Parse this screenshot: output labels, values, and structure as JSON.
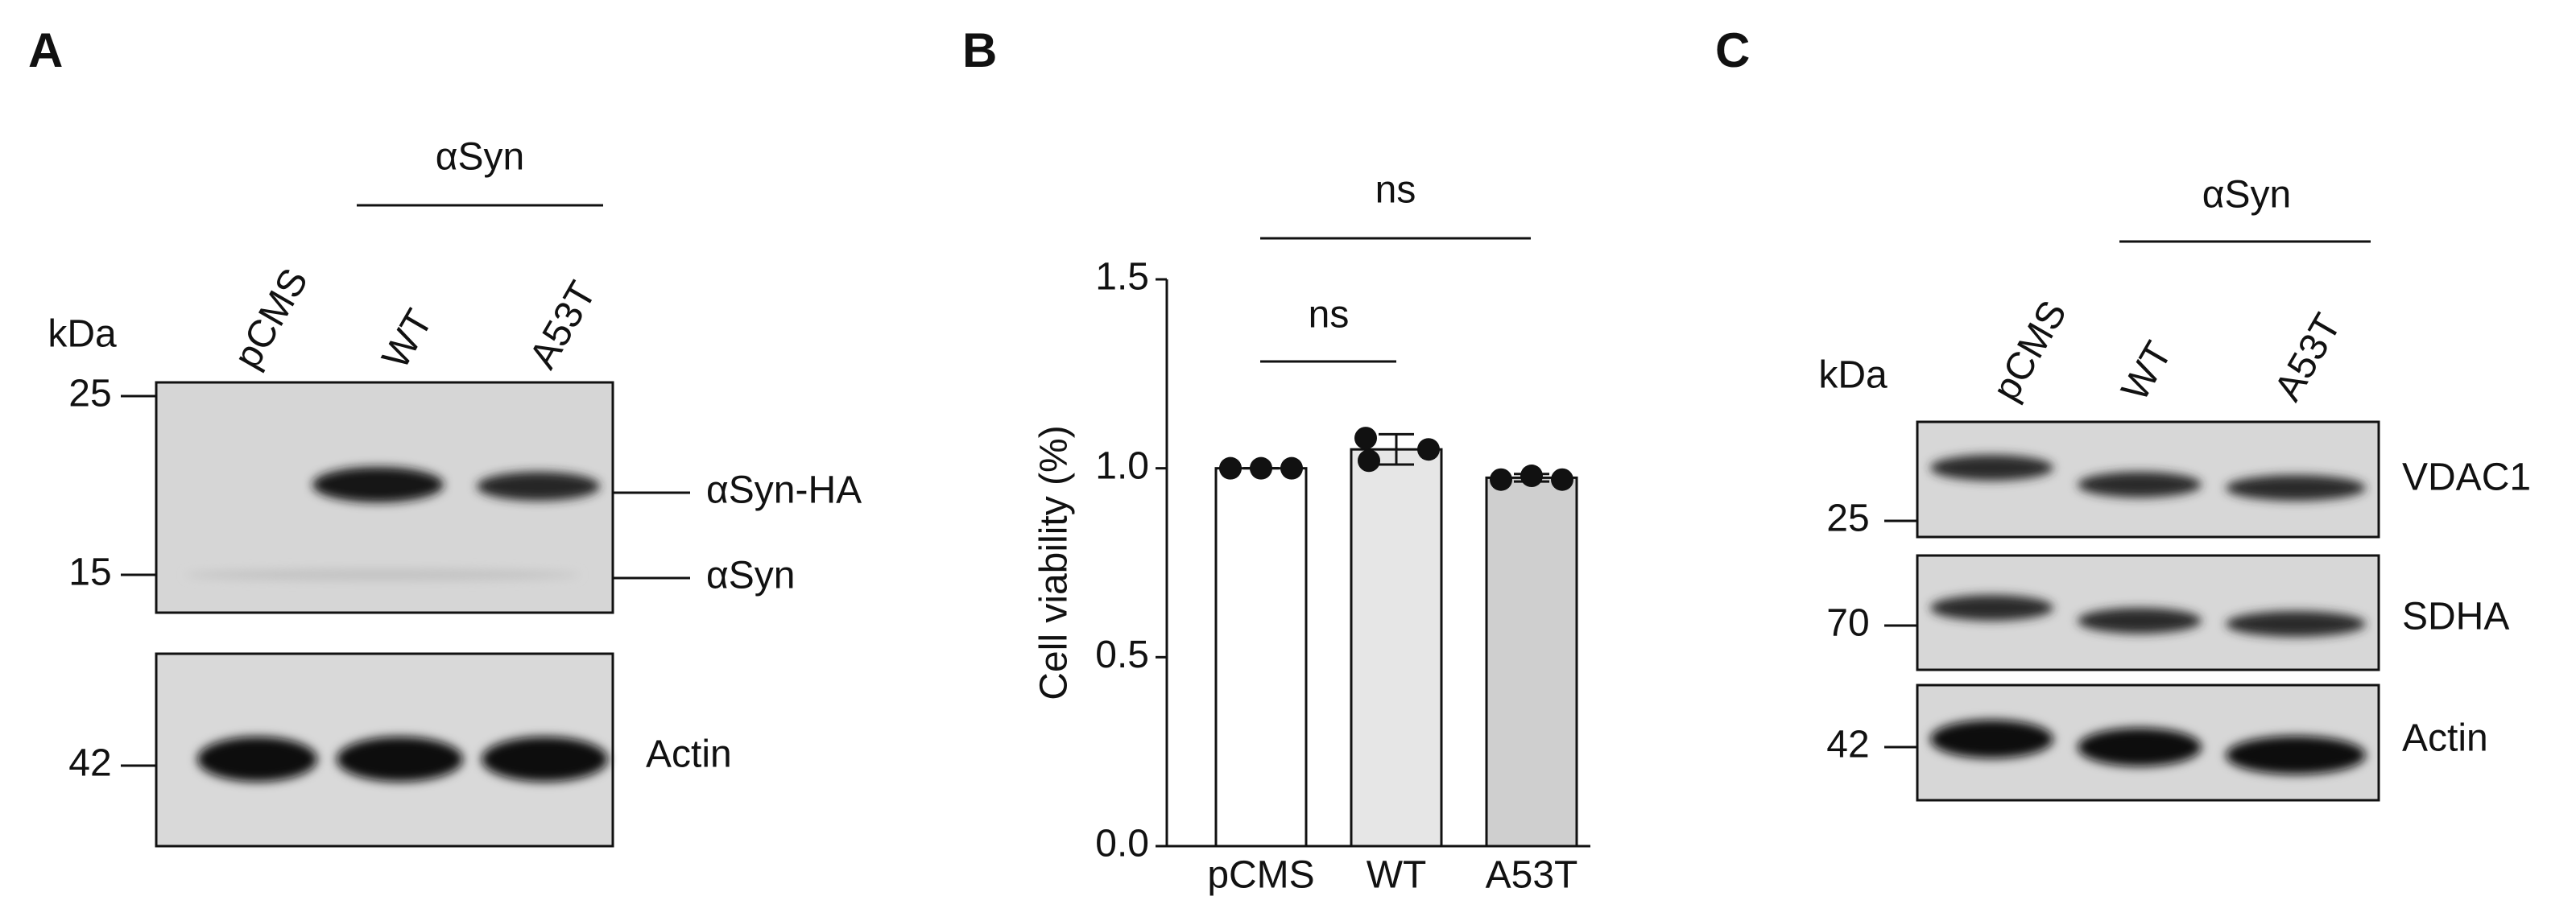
{
  "panel_a": {
    "label": "A",
    "group_label": "αSyn",
    "kda_label": "kDa",
    "lanes": [
      "pCMS",
      "WT",
      "A53T"
    ],
    "markers": [
      "25",
      "15",
      "42"
    ],
    "bands": [
      "αSyn-HA",
      "αSyn",
      "Actin"
    ]
  },
  "chart_data": {
    "type": "bar",
    "label": "B",
    "ylabel": "Cell viability (%)",
    "categories": [
      "pCMS",
      "WT",
      "A53T"
    ],
    "values": [
      1.0,
      1.05,
      0.975
    ],
    "errors": [
      0,
      0.04,
      0.01
    ],
    "points": [
      [
        1.0,
        1.0,
        1.0
      ],
      [
        1.08,
        1.02,
        1.05
      ],
      [
        0.97,
        0.98,
        0.97
      ]
    ],
    "colors": [
      "#ffffff",
      "#e6e6e6",
      "#cfcfcf"
    ],
    "ylim": [
      0,
      1.5
    ],
    "yticks": [
      {
        "value": 0,
        "label": "0.0"
      },
      {
        "value": 0.5,
        "label": "0.5"
      },
      {
        "value": 1,
        "label": "1.0"
      },
      {
        "value": 1.5,
        "label": "1.5"
      }
    ],
    "annotations": [
      "ns",
      "ns"
    ]
  },
  "panel_c": {
    "label": "C",
    "group_label": "αSyn",
    "kda_label": "kDa",
    "lanes": [
      "pCMS",
      "WT",
      "A53T"
    ],
    "markers": [
      "25",
      "70",
      "42"
    ],
    "bands": [
      "VDAC1",
      "SDHA",
      "Actin"
    ]
  }
}
